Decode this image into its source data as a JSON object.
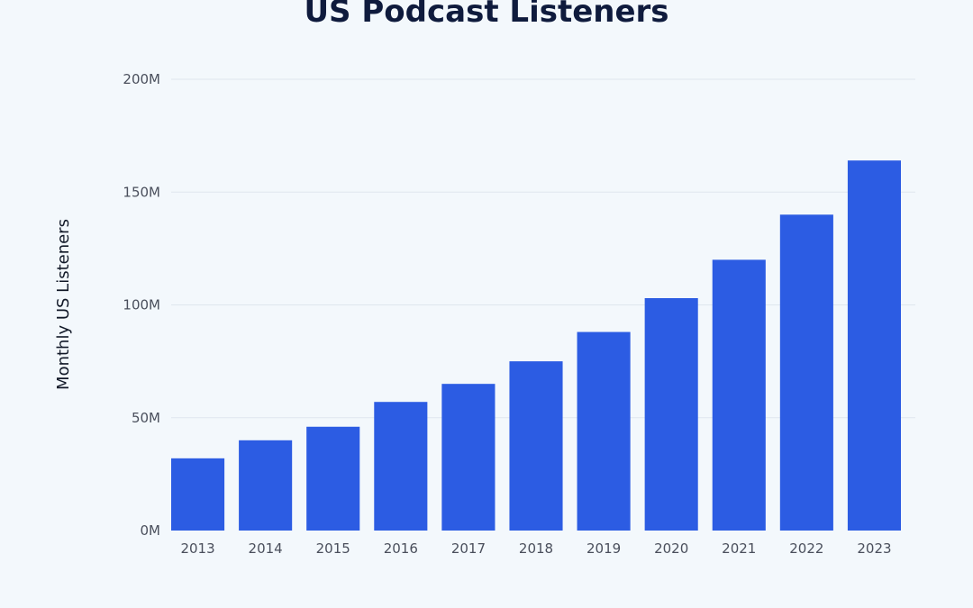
{
  "chart_data": {
    "type": "bar",
    "title": "US Podcast Listeners",
    "xlabel": "",
    "ylabel": "Monthly US Listeners",
    "categories": [
      "2013",
      "2014",
      "2015",
      "2016",
      "2017",
      "2018",
      "2019",
      "2020",
      "2021",
      "2022",
      "2023"
    ],
    "values": [
      32,
      40,
      46,
      57,
      65,
      75,
      88,
      103,
      120,
      140,
      164
    ],
    "value_unit": "M",
    "ylim": [
      0,
      200
    ],
    "yticks": [
      0,
      50,
      100,
      150,
      200
    ],
    "ytick_labels": [
      "0M",
      "50M",
      "100M",
      "150M",
      "200M"
    ],
    "grid": true,
    "legend": "none",
    "colors": {
      "bar": "#2c5ce3",
      "background": "#f3f8fc",
      "grid": "#dfe6ee"
    }
  }
}
